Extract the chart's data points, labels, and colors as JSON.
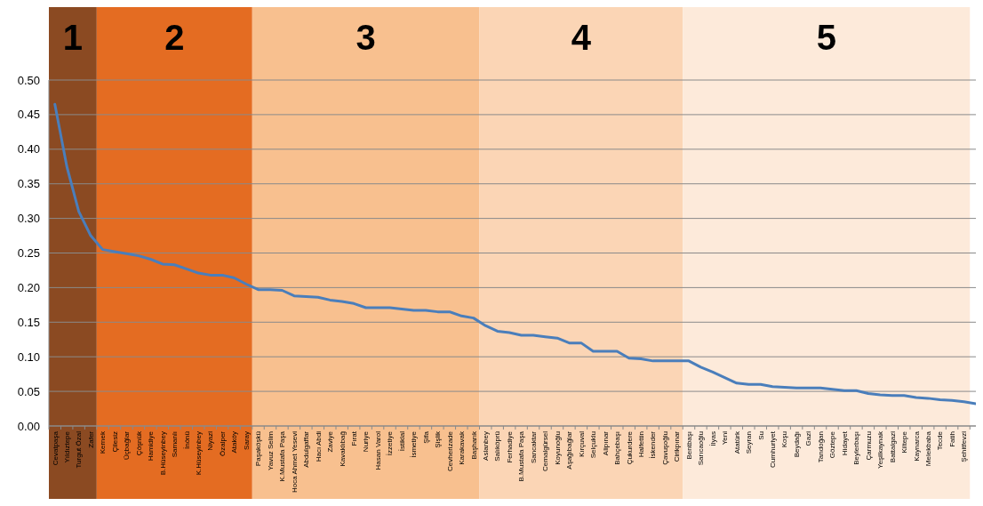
{
  "chart_data": {
    "type": "line",
    "categories": [
      "Cevatpaşa",
      "Yıldıztepe",
      "Turgut Özal",
      "Zafer",
      "Kernek",
      "Çilesiz",
      "Üçbağlar",
      "Çöşnük",
      "Hamidiye",
      "B.Hüseyinbey",
      "Samanlı",
      "İnönü",
      "K.Hüseyinbey",
      "Niyazi",
      "Özalper",
      "Ataköy",
      "Saray",
      "Paşaköşkü",
      "Yavuz Selim",
      "K.Mustafa Paşa",
      "Hoca Ahmet Yesevi",
      "Abdulgaffar",
      "Hacı Abdi",
      "Zaviye",
      "Kavaklıbağ",
      "Fırat",
      "Nuriye",
      "Hasan Varol",
      "İzzetiye",
      "İstiklal",
      "İsmetiye",
      "Şifa",
      "Şişlik",
      "Cevherizade",
      "Karakavak",
      "Başharık",
      "Aslanbey",
      "Salıköprü",
      "Ferhadiye",
      "B.Mustafa Paşa",
      "Sancaktar",
      "Cemalgürsel",
      "Koyunoğlu",
      "Aşağıbağlar",
      "Kırçuval",
      "Selçuklu",
      "Alipınar",
      "Bahçebaşı",
      "Çukurdere",
      "Halfettin",
      "İskender",
      "Çavuşoğlu",
      "Cirikpınar",
      "Bentbaşı",
      "Sarıcaoğlu",
      "İlyas",
      "Yeni",
      "Atatürk",
      "Seyran",
      "Su",
      "Cumhuriyet",
      "Koşu",
      "Beydağı",
      "Gazi",
      "Tandoğan",
      "Göztepe",
      "Hidayet",
      "Beylerbaşı",
      "Çarmuzu",
      "Yeşilkaynak",
      "Battalgazi",
      "Kiltepe",
      "Kaynarca",
      "Melekbaba",
      "Tecde",
      "Fatih",
      "Şehitfevzi",
      null
    ],
    "series": [
      {
        "color": "#4a7ebb",
        "values": [
          0.465,
          0.375,
          0.31,
          0.275,
          0.255,
          0.252,
          0.249,
          0.246,
          0.241,
          0.234,
          0.233,
          0.227,
          0.221,
          0.218,
          0.218,
          0.214,
          0.205,
          0.197,
          0.197,
          0.196,
          0.188,
          0.187,
          0.186,
          0.182,
          0.18,
          0.177,
          0.171,
          0.171,
          0.171,
          0.169,
          0.167,
          0.167,
          0.165,
          0.165,
          0.159,
          0.156,
          0.145,
          0.137,
          0.135,
          0.131,
          0.131,
          0.129,
          0.127,
          0.12,
          0.12,
          0.108,
          0.108,
          0.108,
          0.098,
          0.097,
          0.094,
          0.094,
          0.094,
          0.094,
          0.085,
          0.078,
          0.07,
          0.062,
          0.06,
          0.06,
          0.057,
          0.056,
          0.055,
          0.055,
          0.055,
          0.053,
          0.051,
          0.051,
          0.047,
          0.045,
          0.044,
          0.044,
          0.041,
          0.04,
          0.038,
          0.037,
          0.035,
          0.032
        ]
      }
    ],
    "ylim": [
      0,
      0.5
    ],
    "yticks": [
      {
        "value": 0,
        "label": "0.00"
      },
      {
        "value": 0.05,
        "label": "0.05"
      },
      {
        "value": 0.1,
        "label": "0.10"
      },
      {
        "value": 0.15,
        "label": "0.15"
      },
      {
        "value": 0.2,
        "label": "0.20"
      },
      {
        "value": 0.25,
        "label": "0.25"
      },
      {
        "value": 0.3,
        "label": "0.30"
      },
      {
        "value": 0.35,
        "label": "0.35"
      },
      {
        "value": 0.4,
        "label": "0.40"
      },
      {
        "value": 0.45,
        "label": "0.45"
      },
      {
        "value": 0.5,
        "label": "0.50"
      }
    ],
    "grid": "y",
    "marker": "none",
    "line_style": "solid",
    "bands": [
      {
        "axis": "x",
        "from": "Cevatpaşa",
        "to": "Zafer",
        "label": "1",
        "color": "#8b4a22"
      },
      {
        "axis": "x",
        "from": "Kernek",
        "to": "Saray",
        "label": "2",
        "color": "#e46c22"
      },
      {
        "axis": "x",
        "from": "Paşaköşkü",
        "to": "Başharık",
        "label": "3",
        "color": "#f8c08f"
      },
      {
        "axis": "x",
        "from": "Aslanbey",
        "to": "Cirikpınar",
        "label": "4",
        "color": "#fbd5b5"
      },
      {
        "axis": "x",
        "from": "Bentbaşı",
        "to": "Şehitfevzi",
        "label": "5",
        "color": "#fdeada"
      }
    ]
  }
}
